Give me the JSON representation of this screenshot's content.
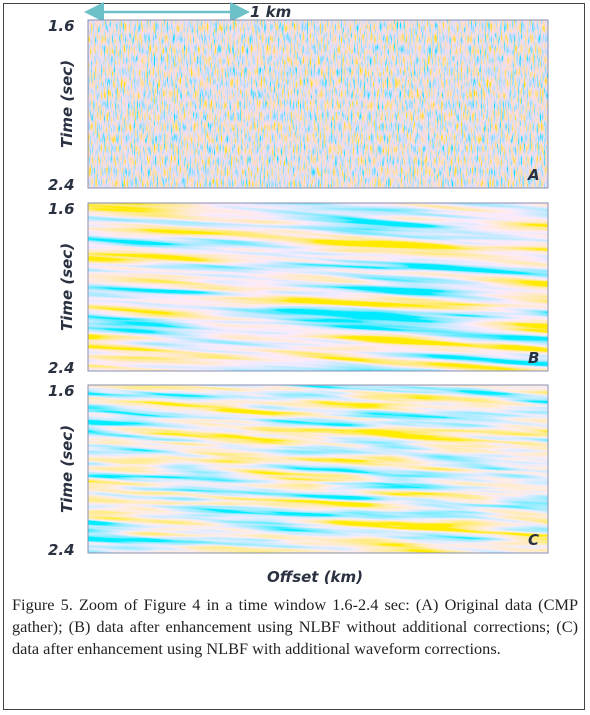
{
  "figure": {
    "scale_bar": "1 km",
    "panels": [
      {
        "label": "A",
        "y_top": "1.6",
        "y_bottom": "2.4",
        "y_axis_label": "Time (sec)"
      },
      {
        "label": "B",
        "y_top": "1.6",
        "y_bottom": "2.4",
        "y_axis_label": "Time (sec)"
      },
      {
        "label": "C",
        "y_top": "1.6",
        "y_bottom": "2.4",
        "y_axis_label": "Time (sec)"
      }
    ],
    "x_axis_label": "Offset (km)"
  },
  "caption": "Figure 5. Zoom of Figure 4 in a time window 1.6-2.4 sec: (A) Original data (CMP gather); (B) data after enhancement using NLBF without additional corrections; (C) data after enhancement using NLBF with additional waveform corrections."
}
